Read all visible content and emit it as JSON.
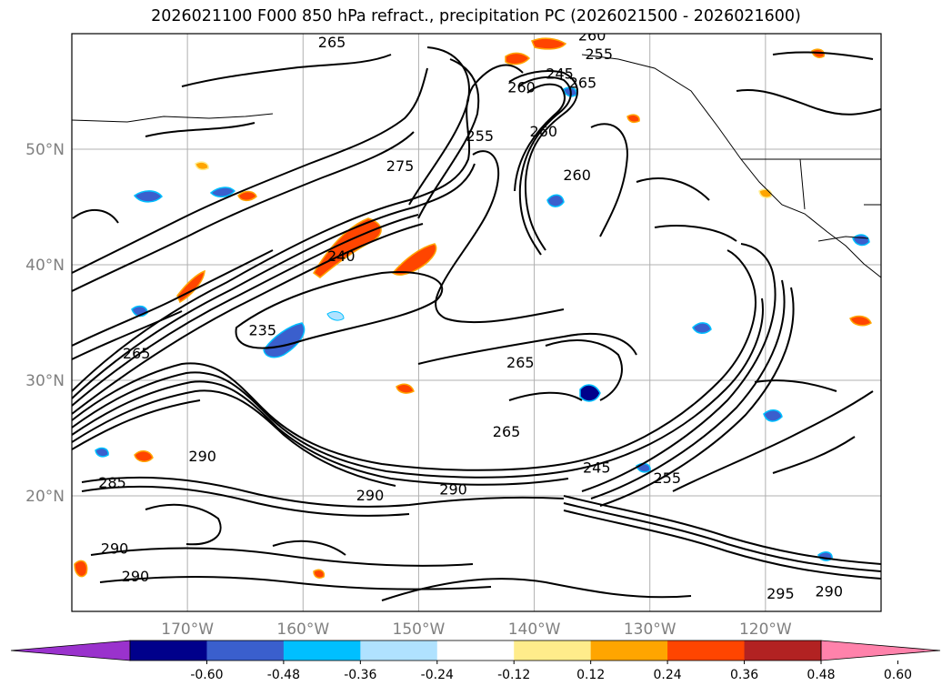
{
  "title": "2026021100 F000 850 hPa refract., precipitation PC (2026021500 - 2026021600)",
  "map": {
    "lon_range": [
      -180,
      -110
    ],
    "lat_range": [
      10,
      60
    ],
    "lat_ticks": [
      {
        "value": 50,
        "label": "50°N"
      },
      {
        "value": 40,
        "label": "40°N"
      },
      {
        "value": 30,
        "label": "30°N"
      },
      {
        "value": 20,
        "label": "20°N"
      }
    ],
    "lon_ticks": [
      {
        "value": -170,
        "label": "170°W"
      },
      {
        "value": -160,
        "label": "160°W"
      },
      {
        "value": -150,
        "label": "150°W"
      },
      {
        "value": -140,
        "label": "140°W"
      },
      {
        "value": -130,
        "label": "130°W"
      },
      {
        "value": -120,
        "label": "120°W"
      }
    ],
    "grid": true
  },
  "colorbar": {
    "extend": "both",
    "colors": [
      "#9a32cd",
      "#00008b",
      "#3a5fcd",
      "#00bfff",
      "#b0e2ff",
      "#ffffff",
      "#ffec8b",
      "#ffa500",
      "#ff4500",
      "#b22222",
      "#ff82ab"
    ],
    "ticks": [
      "-0.60",
      "-0.48",
      "-0.36",
      "-0.24",
      "-0.12",
      "0.12",
      "0.24",
      "0.36",
      "0.48",
      "0.60"
    ]
  },
  "contour_labels": [
    {
      "text": "265",
      "lon": -157.5,
      "lat": 59.2
    },
    {
      "text": "260",
      "lon": -135,
      "lat": 59.8
    },
    {
      "text": "255",
      "lon": -134.4,
      "lat": 58.2
    },
    {
      "text": "245",
      "lon": -137.8,
      "lat": 56.5
    },
    {
      "text": "265",
      "lon": -135.8,
      "lat": 55.7
    },
    {
      "text": "260",
      "lon": -141.1,
      "lat": 55.3
    },
    {
      "text": "255",
      "lon": -144.7,
      "lat": 51.1
    },
    {
      "text": "260",
      "lon": -139.2,
      "lat": 51.5
    },
    {
      "text": "275",
      "lon": -151.6,
      "lat": 48.5
    },
    {
      "text": "260",
      "lon": -136.3,
      "lat": 47.7
    },
    {
      "text": "240",
      "lon": -156.7,
      "lat": 40.7
    },
    {
      "text": "235",
      "lon": -163.5,
      "lat": 34.3
    },
    {
      "text": "265",
      "lon": -174.4,
      "lat": 32.3
    },
    {
      "text": "265",
      "lon": -141.2,
      "lat": 31.5
    },
    {
      "text": "265",
      "lon": -142.4,
      "lat": 25.5
    },
    {
      "text": "245",
      "lon": -134.6,
      "lat": 22.4
    },
    {
      "text": "255",
      "lon": -128.5,
      "lat": 21.5
    },
    {
      "text": "290",
      "lon": -154.2,
      "lat": 20.0
    },
    {
      "text": "290",
      "lon": -147,
      "lat": 20.5
    },
    {
      "text": "285",
      "lon": -176.5,
      "lat": 21.1
    },
    {
      "text": "290",
      "lon": -168.7,
      "lat": 23.4
    },
    {
      "text": "290",
      "lon": -176.3,
      "lat": 15.4
    },
    {
      "text": "290",
      "lon": -174.5,
      "lat": 13.0
    },
    {
      "text": "295",
      "lon": -118.7,
      "lat": 11.5
    },
    {
      "text": "290",
      "lon": -114.5,
      "lat": 11.7
    }
  ]
}
